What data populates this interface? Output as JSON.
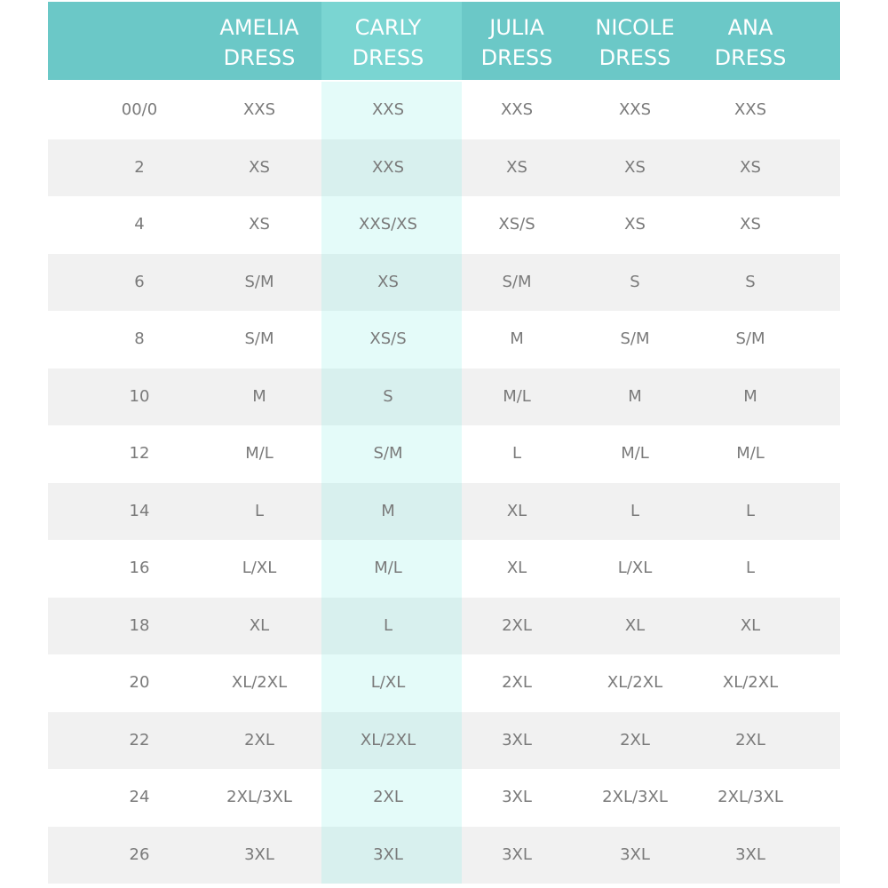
{
  "table": {
    "columns": [
      "AMELIA DRESS",
      "CARLY DRESS",
      "JULIA DRESS",
      "NICOLE DRESS",
      "ANA DRESS"
    ],
    "rows": [
      [
        "00/0",
        "XXS",
        "XXS",
        "XXS",
        "XXS",
        "XXS"
      ],
      [
        "2",
        "XS",
        "XXS",
        "XS",
        "XS",
        "XS"
      ],
      [
        "4",
        "XS",
        "XXS/XS",
        "XS/S",
        "XS",
        "XS"
      ],
      [
        "6",
        "S/M",
        "XS",
        "S/M",
        "S",
        "S"
      ],
      [
        "8",
        "S/M",
        "XS/S",
        "M",
        "S/M",
        "S/M"
      ],
      [
        "10",
        "M",
        "S",
        "M/L",
        "M",
        "M"
      ],
      [
        "12",
        "M/L",
        "S/M",
        "L",
        "M/L",
        "M/L"
      ],
      [
        "14",
        "L",
        "M",
        "XL",
        "L",
        "L"
      ],
      [
        "16",
        "L/XL",
        "M/L",
        "XL",
        "L/XL",
        "L"
      ],
      [
        "18",
        "XL",
        "L",
        "2XL",
        "XL",
        "XL"
      ],
      [
        "20",
        "XL/2XL",
        "L/XL",
        "2XL",
        "XL/2XL",
        "XL/2XL"
      ],
      [
        "22",
        "2XL",
        "XL/2XL",
        "3XL",
        "2XL",
        "2XL"
      ],
      [
        "24",
        "2XL/3XL",
        "2XL",
        "3XL",
        "2XL/3XL",
        "2XL/3XL"
      ],
      [
        "26",
        "3XL",
        "3XL",
        "3XL",
        "3XL",
        "3XL"
      ]
    ]
  }
}
